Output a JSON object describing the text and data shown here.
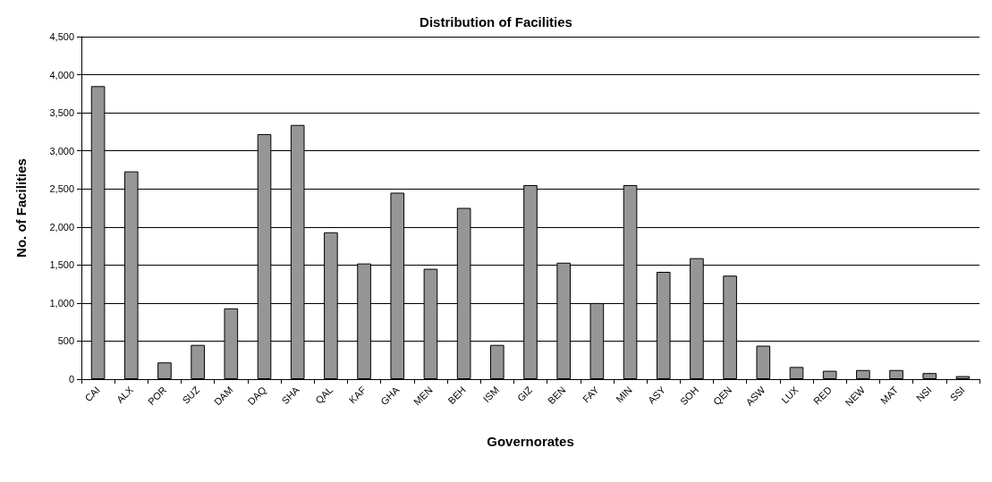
{
  "chart_data": {
    "type": "bar",
    "title": "Distribution of Facilities",
    "xlabel": "Governorates",
    "ylabel": "No. of Facilities",
    "categories": [
      "CAI",
      "ALX",
      "POR",
      "SUZ",
      "DAM",
      "DAQ",
      "SHA",
      "QAL",
      "KAF",
      "GHA",
      "MEN",
      "BEH",
      "ISM",
      "GIZ",
      "BEN",
      "FAY",
      "MIN",
      "ASY",
      "SOH",
      "QEN",
      "ASW",
      "LUX",
      "RED",
      "NEW",
      "MAT",
      "NSI",
      "SSI"
    ],
    "values": [
      3850,
      2730,
      220,
      450,
      930,
      3220,
      3340,
      1930,
      1520,
      2450,
      1450,
      2250,
      450,
      2550,
      1530,
      1000,
      2550,
      1410,
      1590,
      1360,
      440,
      160,
      110,
      120,
      120,
      80,
      40
    ],
    "color": "#969696",
    "ylim": [
      0,
      4500
    ],
    "yticks": [
      {
        "value": 0,
        "label": "0"
      },
      {
        "value": 500,
        "label": "500"
      },
      {
        "value": 1000,
        "label": "1,000"
      },
      {
        "value": 1500,
        "label": "1,500"
      },
      {
        "value": 2000,
        "label": "2,000"
      },
      {
        "value": 2500,
        "label": "2,500"
      },
      {
        "value": 3000,
        "label": "3,000"
      },
      {
        "value": 3500,
        "label": "3,500"
      },
      {
        "value": 4000,
        "label": "4,000"
      },
      {
        "value": 4500,
        "label": "4,500"
      }
    ],
    "grid": true
  }
}
